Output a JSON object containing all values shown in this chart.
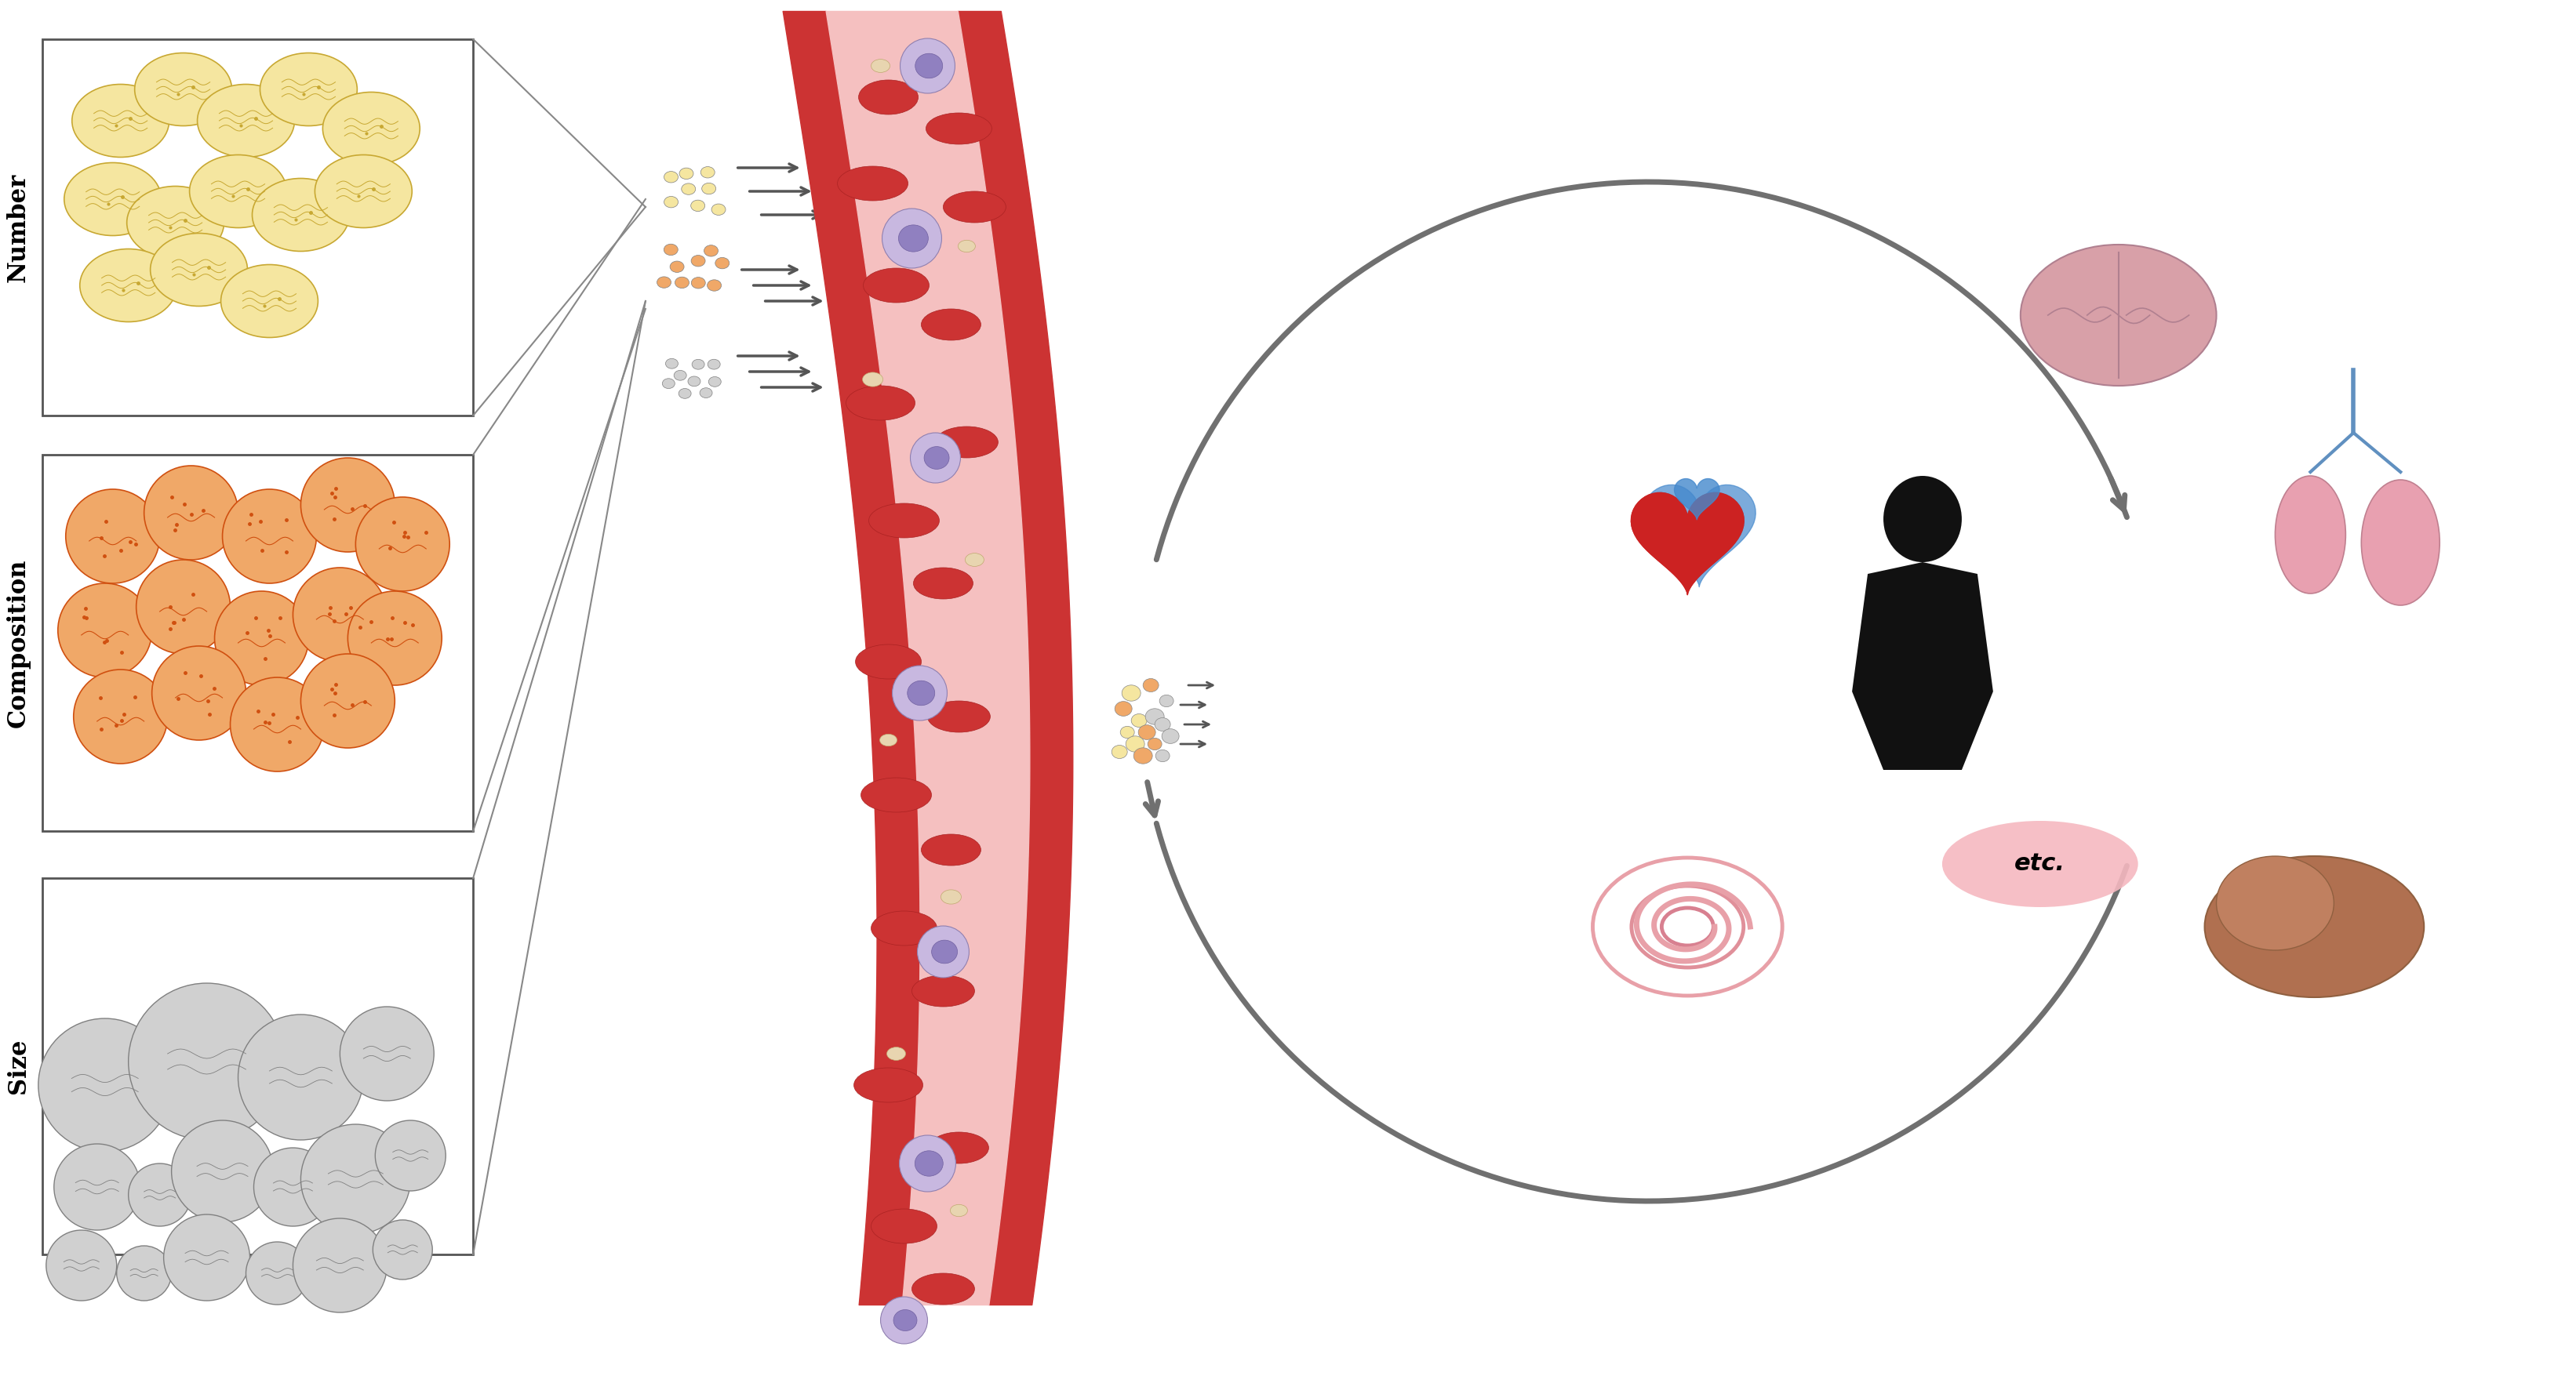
{
  "background_color": "#ffffff",
  "fig_width": 32.84,
  "fig_height": 17.64,
  "labels": {
    "number": "Number",
    "composition": "Composition",
    "size": "Size",
    "etc": "etc."
  },
  "colors": {
    "vesicle_number_fill": "#f5e6a0",
    "vesicle_number_stroke": "#c8a832",
    "vesicle_composition_fill": "#f0a868",
    "vesicle_composition_stroke": "#d05010",
    "vesicle_size_fill": "#d0d0d0",
    "vesicle_size_stroke": "#808080",
    "box_border": "#555555",
    "arrow_color": "#555555",
    "blood_vessel_outer": "#cc3333",
    "blood_vessel_inner": "#f5c0c0",
    "rbc_color": "#cc3333",
    "wbc_color": "#b0a0d0",
    "platelet_color": "#e8d0b0",
    "organ_etc_bg": "#f5b8c0",
    "person_color": "#111111",
    "brain_color": "#d8a0a8",
    "heart_color_red": "#cc2222",
    "heart_color_blue": "#4488cc",
    "lung_color": "#e8a8b0",
    "intestine_color": "#e8a0a8",
    "liver_color": "#c08060"
  }
}
